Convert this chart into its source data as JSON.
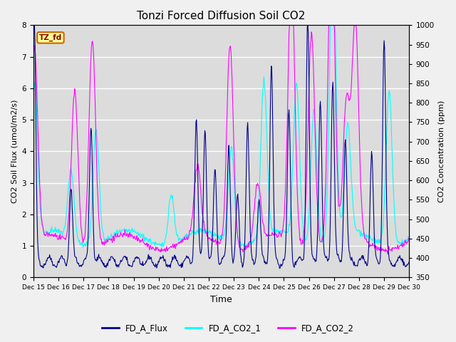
{
  "title": "Tonzi Forced Diffusion Soil CO2",
  "xlabel": "Time",
  "ylabel_left": "CO2 Soil Flux (umol/m2/s)",
  "ylabel_right": "CO2 Concentration (ppm)",
  "ylim_left": [
    0.0,
    8.0
  ],
  "ylim_right": [
    350,
    1000
  ],
  "yticks_left": [
    0.0,
    1.0,
    2.0,
    3.0,
    4.0,
    5.0,
    6.0,
    7.0,
    8.0
  ],
  "yticks_right": [
    350,
    400,
    450,
    500,
    550,
    600,
    650,
    700,
    750,
    800,
    850,
    900,
    950,
    1000
  ],
  "xtick_labels": [
    "Dec 15",
    "Dec 16",
    "Dec 17",
    "Dec 18",
    "Dec 19",
    "Dec 20",
    "Dec 21",
    "Dec 22",
    "Dec 23",
    "Dec 24",
    "Dec 25",
    "Dec 26",
    "Dec 27",
    "Dec 28",
    "Dec 29",
    "Dec 30"
  ],
  "flux_color": "#00008B",
  "co2_1_color": "#00FFFF",
  "co2_2_color": "#FF00FF",
  "legend_labels": [
    "FD_A_Flux",
    "FD_A_CO2_1",
    "FD_A_CO2_2"
  ],
  "tag_text": "TZ_fd",
  "tag_bg": "#FFFF99",
  "tag_border": "#CC6600",
  "tag_text_color": "#8B0000",
  "plot_bg": "#DCDCDC",
  "fig_bg": "#F0F0F0",
  "grid_color": "#FFFFFF"
}
